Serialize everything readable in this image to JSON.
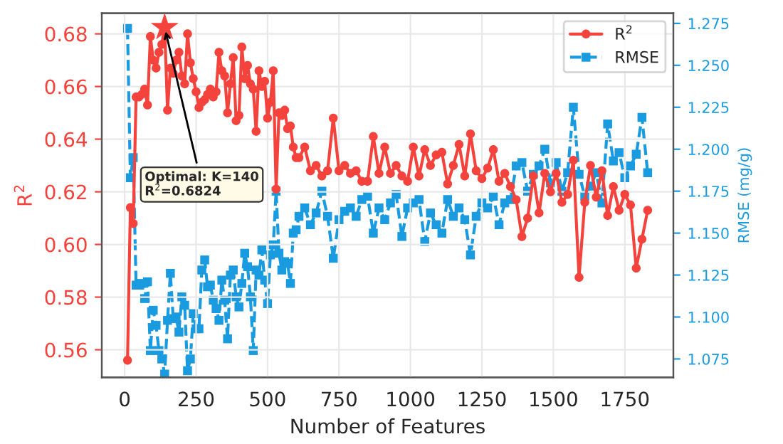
{
  "chart_data": {
    "type": "line",
    "xlabel": "Number of Features",
    "ylabel": "R$^{2}$",
    "y2label": "RMSE (mg/g)",
    "xlim": [
      -80,
      1920
    ],
    "ylim": [
      0.5495,
      0.6878
    ],
    "y2lim": [
      1.064,
      1.281
    ],
    "xticks": [
      0,
      250,
      500,
      750,
      1000,
      1250,
      1500,
      1750
    ],
    "yticks": [
      {
        "value": 0.56,
        "label": "0.56"
      },
      {
        "value": 0.58,
        "label": "0.58"
      },
      {
        "value": 0.6,
        "label": "0.60"
      },
      {
        "value": 0.62,
        "label": "0.62"
      },
      {
        "value": 0.64,
        "label": "0.64"
      },
      {
        "value": 0.66,
        "label": "0.66"
      },
      {
        "value": 0.68,
        "label": "0.68"
      }
    ],
    "y2ticks": [
      {
        "value": 1.075,
        "label": "1.075"
      },
      {
        "value": 1.1,
        "label": "1.100"
      },
      {
        "value": 1.125,
        "label": "1.125"
      },
      {
        "value": 1.15,
        "label": "1.150"
      },
      {
        "value": 1.175,
        "label": "1.175"
      },
      {
        "value": 1.2,
        "label": "1.200"
      },
      {
        "value": 1.225,
        "label": "1.225"
      },
      {
        "value": 1.25,
        "label": "1.250"
      },
      {
        "value": 1.275,
        "label": "1.275"
      }
    ],
    "grid": true,
    "legend": "top right",
    "x": [
      10,
      20,
      30,
      40,
      50,
      60,
      70,
      80,
      90,
      100,
      110,
      120,
      130,
      140,
      150,
      160,
      170,
      180,
      190,
      200,
      210,
      220,
      230,
      240,
      250,
      260,
      270,
      280,
      290,
      300,
      310,
      320,
      330,
      340,
      350,
      360,
      370,
      380,
      390,
      400,
      410,
      420,
      430,
      440,
      450,
      460,
      470,
      480,
      490,
      500,
      510,
      520,
      530,
      540,
      550,
      560,
      570,
      580,
      590,
      600,
      610,
      630,
      650,
      670,
      690,
      710,
      730,
      750,
      770,
      790,
      810,
      830,
      850,
      870,
      890,
      910,
      930,
      950,
      970,
      990,
      1010,
      1030,
      1050,
      1070,
      1090,
      1110,
      1130,
      1150,
      1170,
      1190,
      1210,
      1230,
      1250,
      1270,
      1290,
      1310,
      1330,
      1350,
      1370,
      1390,
      1410,
      1430,
      1450,
      1470,
      1490,
      1510,
      1530,
      1550,
      1570,
      1590,
      1610,
      1630,
      1650,
      1670,
      1690,
      1710,
      1730,
      1750,
      1770,
      1790,
      1810,
      1830
    ],
    "series": [
      {
        "name": "R$^{2}$",
        "color": "#f4433c",
        "marker": "circle",
        "line_style": "solid",
        "values": [
          0.556,
          0.614,
          0.608,
          0.656,
          0.656,
          0.657,
          0.659,
          0.653,
          0.679,
          0.67,
          0.667,
          0.673,
          0.676,
          0.6824,
          0.651,
          0.667,
          0.665,
          0.67,
          0.673,
          0.664,
          0.661,
          0.68,
          0.669,
          0.663,
          0.658,
          0.652,
          0.654,
          0.655,
          0.657,
          0.659,
          0.656,
          0.658,
          0.673,
          0.666,
          0.664,
          0.65,
          0.661,
          0.671,
          0.647,
          0.649,
          0.675,
          0.663,
          0.668,
          0.661,
          0.659,
          0.643,
          0.666,
          0.66,
          0.662,
          0.648,
          0.654,
          0.666,
          0.621,
          0.65,
          0.649,
          0.651,
          0.644,
          0.645,
          0.637,
          0.633,
          0.633,
          0.637,
          0.628,
          0.63,
          0.626,
          0.628,
          0.648,
          0.628,
          0.63,
          0.627,
          0.628,
          0.624,
          0.624,
          0.641,
          0.627,
          0.637,
          0.627,
          0.63,
          0.626,
          0.624,
          0.637,
          0.626,
          0.636,
          0.63,
          0.634,
          0.635,
          0.623,
          0.63,
          0.638,
          0.626,
          0.642,
          0.628,
          0.625,
          0.629,
          0.636,
          0.624,
          0.627,
          0.622,
          0.617,
          0.603,
          0.61,
          0.626,
          0.612,
          0.627,
          0.62,
          0.627,
          0.616,
          0.619,
          0.632,
          0.5875,
          0.616,
          0.63,
          0.618,
          0.628,
          0.611,
          0.622,
          0.613,
          0.619,
          0.615,
          0.591,
          0.602,
          0.613
        ]
      },
      {
        "name": "RMSE",
        "color": "#1a9be0",
        "marker": "square",
        "line_style": "dashed",
        "axis": "y2",
        "values": [
          1.272,
          1.183,
          1.195,
          1.119,
          1.119,
          1.12,
          1.111,
          1.121,
          1.08,
          1.104,
          1.095,
          1.08,
          1.075,
          1.066,
          1.098,
          1.126,
          1.099,
          1.1,
          1.091,
          1.112,
          1.107,
          1.068,
          1.075,
          1.102,
          1.093,
          1.093,
          1.128,
          1.134,
          1.118,
          1.119,
          1.11,
          1.105,
          1.098,
          1.122,
          1.11,
          1.087,
          1.125,
          1.128,
          1.112,
          1.106,
          1.12,
          1.138,
          1.13,
          1.112,
          1.08,
          1.128,
          1.125,
          1.14,
          1.122,
          1.108,
          1.137,
          1.143,
          1.175,
          1.138,
          1.128,
          1.133,
          1.132,
          1.12,
          1.15,
          1.152,
          1.16,
          1.165,
          1.155,
          1.162,
          1.175,
          1.16,
          1.135,
          1.158,
          1.163,
          1.165,
          1.16,
          1.17,
          1.172,
          1.15,
          1.165,
          1.158,
          1.168,
          1.173,
          1.148,
          1.165,
          1.168,
          1.17,
          1.145,
          1.162,
          1.155,
          1.15,
          1.17,
          1.16,
          1.165,
          1.158,
          1.137,
          1.16,
          1.168,
          1.165,
          1.172,
          1.155,
          1.168,
          1.17,
          1.19,
          1.192,
          1.175,
          1.185,
          1.19,
          1.2,
          1.18,
          1.192,
          1.175,
          1.186,
          1.225,
          1.185,
          1.172,
          1.178,
          1.186,
          1.168,
          1.215,
          1.193,
          1.198,
          1.183,
          1.19,
          1.197,
          1.219,
          1.186
        ]
      },
      {
        "type": "scatter",
        "color": "#f4433c",
        "marker": "star",
        "x": [
          140
        ],
        "values": [
          0.6824
        ]
      }
    ],
    "annotations": [
      {
        "text": "Optimal: K=140\nR$^{2}$=0.6824",
        "x": 140,
        "y": 0.6824
      }
    ]
  }
}
